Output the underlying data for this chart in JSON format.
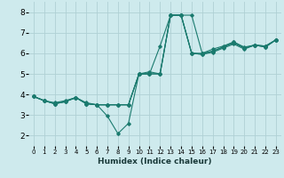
{
  "xlabel": "Humidex (Indice chaleur)",
  "bg_color": "#ceeaed",
  "grid_color": "#b0d0d4",
  "line_color": "#1a7a6e",
  "marker_color": "#1a7a6e",
  "xlim": [
    -0.5,
    23.5
  ],
  "ylim": [
    1.5,
    8.5
  ],
  "yticks": [
    2,
    3,
    4,
    5,
    6,
    7,
    8
  ],
  "xticks": [
    0,
    1,
    2,
    3,
    4,
    5,
    6,
    7,
    8,
    9,
    10,
    11,
    12,
    13,
    14,
    15,
    16,
    17,
    18,
    19,
    20,
    21,
    22,
    23
  ],
  "lines": [
    [
      0,
      3.9,
      1,
      3.7,
      2,
      3.6,
      3,
      3.7,
      4,
      3.85,
      5,
      3.6,
      6,
      3.5,
      7,
      2.95,
      8,
      2.1,
      9,
      2.6,
      10,
      5.0,
      11,
      5.0,
      12,
      6.35,
      13,
      7.85,
      14,
      7.85,
      15,
      7.85,
      16,
      6.0,
      17,
      6.1,
      18,
      6.3,
      19,
      6.55,
      20,
      6.25,
      21,
      6.4,
      22,
      6.35,
      23,
      6.65
    ],
    [
      0,
      3.9,
      1,
      3.7,
      2,
      3.55,
      3,
      3.65,
      4,
      3.85,
      5,
      3.55,
      6,
      3.5,
      7,
      3.5,
      8,
      3.5,
      9,
      3.5,
      10,
      5.0,
      11,
      5.0,
      12,
      5.0,
      13,
      7.85,
      14,
      7.85,
      15,
      6.0,
      16,
      6.0,
      17,
      6.2,
      18,
      6.35,
      19,
      6.55,
      20,
      6.3,
      21,
      6.4,
      22,
      6.3,
      23,
      6.65
    ],
    [
      0,
      3.9,
      1,
      3.7,
      2,
      3.55,
      3,
      3.65,
      4,
      3.85,
      5,
      3.55,
      6,
      3.5,
      7,
      3.5,
      8,
      3.5,
      9,
      3.5,
      10,
      5.0,
      11,
      5.1,
      12,
      5.0,
      13,
      7.85,
      14,
      7.85,
      15,
      6.0,
      16,
      5.95,
      17,
      6.1,
      18,
      6.3,
      19,
      6.5,
      20,
      6.25,
      21,
      6.4,
      22,
      6.35,
      23,
      6.65
    ],
    [
      0,
      3.9,
      1,
      3.7,
      2,
      3.55,
      3,
      3.65,
      4,
      3.85,
      5,
      3.55,
      6,
      3.5,
      7,
      3.5,
      8,
      3.5,
      9,
      3.5,
      10,
      5.0,
      11,
      5.0,
      12,
      5.0,
      13,
      7.85,
      14,
      7.85,
      15,
      6.0,
      16,
      5.95,
      17,
      6.05,
      18,
      6.25,
      19,
      6.45,
      20,
      6.2,
      21,
      6.4,
      22,
      6.3,
      23,
      6.65
    ]
  ],
  "xlabel_fontsize": 6.5,
  "tick_fontsize_x": 5.0,
  "tick_fontsize_y": 6.5
}
